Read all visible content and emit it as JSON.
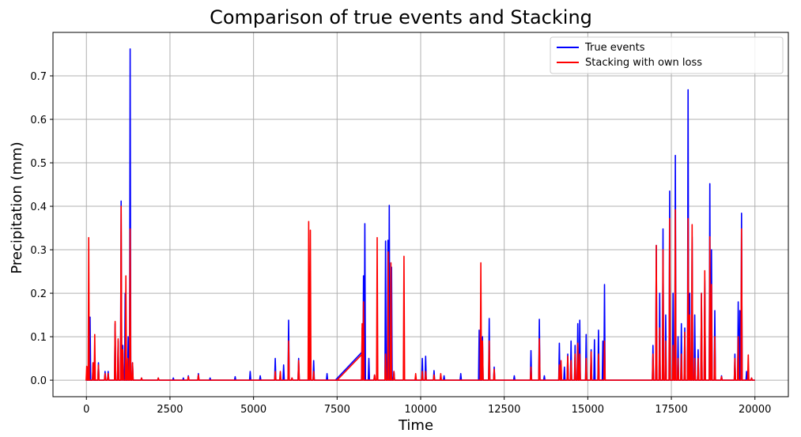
{
  "chart_data": {
    "type": "line",
    "title": "Comparison of  true events and Stacking",
    "xlabel": "Time",
    "ylabel": "Precipitation (mm)",
    "xlim": [
      -1000,
      21000
    ],
    "ylim": [
      -0.038,
      0.8
    ],
    "xticks": [
      0,
      2500,
      5000,
      7500,
      10000,
      12500,
      15000,
      17500,
      20000
    ],
    "yticks": [
      0.0,
      0.1,
      0.2,
      0.3,
      0.4,
      0.5,
      0.6,
      0.7
    ],
    "grid": true,
    "legend_position": "top-right",
    "series": [
      {
        "name": "True events",
        "color": "#0000ff",
        "spikes": [
          [
            50,
            0.03
          ],
          [
            110,
            0.145
          ],
          [
            200,
            0.04
          ],
          [
            360,
            0.04
          ],
          [
            560,
            0.02
          ],
          [
            650,
            0.02
          ],
          [
            860,
            0.13
          ],
          [
            950,
            0.09
          ],
          [
            1040,
            0.412
          ],
          [
            1090,
            0.08
          ],
          [
            1160,
            0.2
          ],
          [
            1250,
            0.1
          ],
          [
            1310,
            0.762
          ],
          [
            1380,
            0.04
          ],
          [
            1650,
            0.005
          ],
          [
            2150,
            0.005
          ],
          [
            2600,
            0.005
          ],
          [
            2900,
            0.005
          ],
          [
            3050,
            0.01
          ],
          [
            3350,
            0.015
          ],
          [
            3700,
            0.005
          ],
          [
            4450,
            0.008
          ],
          [
            4900,
            0.02
          ],
          [
            5200,
            0.01
          ],
          [
            5650,
            0.05
          ],
          [
            5900,
            0.035
          ],
          [
            6050,
            0.138
          ],
          [
            6150,
            0.005
          ],
          [
            6350,
            0.05
          ],
          [
            6700,
            0.065
          ],
          [
            6800,
            0.045
          ],
          [
            7200,
            0.015
          ],
          [
            8250,
            0.12
          ],
          [
            8290,
            0.24
          ],
          [
            8330,
            0.36
          ],
          [
            8450,
            0.05
          ],
          [
            8620,
            0.012
          ],
          [
            8700,
            0.015
          ],
          [
            8950,
            0.32
          ],
          [
            9020,
            0.322
          ],
          [
            9060,
            0.402
          ],
          [
            9130,
            0.26
          ],
          [
            9200,
            0.02
          ],
          [
            9500,
            0.01
          ],
          [
            10050,
            0.05
          ],
          [
            10150,
            0.055
          ],
          [
            10400,
            0.022
          ],
          [
            10700,
            0.01
          ],
          [
            11200,
            0.015
          ],
          [
            11750,
            0.115
          ],
          [
            11850,
            0.1
          ],
          [
            12050,
            0.142
          ],
          [
            12200,
            0.03
          ],
          [
            12800,
            0.01
          ],
          [
            13300,
            0.068
          ],
          [
            13550,
            0.14
          ],
          [
            13700,
            0.01
          ],
          [
            14150,
            0.085
          ],
          [
            14300,
            0.03
          ],
          [
            14400,
            0.06
          ],
          [
            14500,
            0.09
          ],
          [
            14620,
            0.08
          ],
          [
            14700,
            0.13
          ],
          [
            14760,
            0.138
          ],
          [
            14950,
            0.105
          ],
          [
            15100,
            0.07
          ],
          [
            15200,
            0.093
          ],
          [
            15320,
            0.115
          ],
          [
            15450,
            0.09
          ],
          [
            15500,
            0.22
          ],
          [
            16950,
            0.08
          ],
          [
            17050,
            0.31
          ],
          [
            17150,
            0.2
          ],
          [
            17250,
            0.348
          ],
          [
            17330,
            0.15
          ],
          [
            17450,
            0.435
          ],
          [
            17550,
            0.2
          ],
          [
            17620,
            0.517
          ],
          [
            17700,
            0.1
          ],
          [
            17800,
            0.13
          ],
          [
            17900,
            0.12
          ],
          [
            18000,
            0.668
          ],
          [
            18050,
            0.2
          ],
          [
            18120,
            0.33
          ],
          [
            18200,
            0.15
          ],
          [
            18300,
            0.07
          ],
          [
            18400,
            0.2
          ],
          [
            18500,
            0.23
          ],
          [
            18650,
            0.452
          ],
          [
            18700,
            0.3
          ],
          [
            18800,
            0.16
          ],
          [
            19000,
            0.01
          ],
          [
            19400,
            0.06
          ],
          [
            19500,
            0.18
          ],
          [
            19550,
            0.16
          ],
          [
            19600,
            0.384
          ],
          [
            19750,
            0.02
          ],
          [
            19900,
            0.005
          ]
        ],
        "ramps": [
          [
            7450,
            0.0
          ],
          [
            8250,
            0.065
          ]
        ]
      },
      {
        "name": "Stacking with own loss",
        "color": "#ff0000",
        "spikes": [
          [
            10,
            0.032
          ],
          [
            70,
            0.328
          ],
          [
            200,
            0.04
          ],
          [
            250,
            0.105
          ],
          [
            360,
            0.035
          ],
          [
            560,
            0.015
          ],
          [
            650,
            0.015
          ],
          [
            860,
            0.135
          ],
          [
            950,
            0.095
          ],
          [
            1040,
            0.4
          ],
          [
            1090,
            0.07
          ],
          [
            1180,
            0.24
          ],
          [
            1240,
            0.05
          ],
          [
            1310,
            0.348
          ],
          [
            1380,
            0.04
          ],
          [
            1650,
            0.005
          ],
          [
            2150,
            0.005
          ],
          [
            3050,
            0.008
          ],
          [
            3350,
            0.012
          ],
          [
            5650,
            0.02
          ],
          [
            5800,
            0.02
          ],
          [
            6050,
            0.09
          ],
          [
            6150,
            0.005
          ],
          [
            6350,
            0.045
          ],
          [
            6650,
            0.365
          ],
          [
            6700,
            0.345
          ],
          [
            6800,
            0.02
          ],
          [
            8250,
            0.13
          ],
          [
            8290,
            0.18
          ],
          [
            8620,
            0.012
          ],
          [
            8700,
            0.328
          ],
          [
            8950,
            0.06
          ],
          [
            9030,
            0.295
          ],
          [
            9110,
            0.27
          ],
          [
            9200,
            0.02
          ],
          [
            9500,
            0.285
          ],
          [
            9850,
            0.015
          ],
          [
            10050,
            0.02
          ],
          [
            10150,
            0.02
          ],
          [
            10400,
            0.012
          ],
          [
            10600,
            0.015
          ],
          [
            11800,
            0.27
          ],
          [
            11850,
            0.09
          ],
          [
            12050,
            0.09
          ],
          [
            12200,
            0.025
          ],
          [
            13300,
            0.03
          ],
          [
            13550,
            0.095
          ],
          [
            14150,
            0.035
          ],
          [
            14200,
            0.045
          ],
          [
            14400,
            0.055
          ],
          [
            14500,
            0.045
          ],
          [
            14620,
            0.06
          ],
          [
            14700,
            0.085
          ],
          [
            14760,
            0.06
          ],
          [
            14950,
            0.05
          ],
          [
            15100,
            0.065
          ],
          [
            15320,
            0.06
          ],
          [
            15500,
            0.09
          ],
          [
            16950,
            0.06
          ],
          [
            17050,
            0.31
          ],
          [
            17150,
            0.12
          ],
          [
            17250,
            0.3
          ],
          [
            17330,
            0.09
          ],
          [
            17450,
            0.372
          ],
          [
            17550,
            0.08
          ],
          [
            17620,
            0.392
          ],
          [
            17700,
            0.05
          ],
          [
            17800,
            0.06
          ],
          [
            17900,
            0.11
          ],
          [
            18000,
            0.372
          ],
          [
            18050,
            0.15
          ],
          [
            18120,
            0.358
          ],
          [
            18200,
            0.05
          ],
          [
            18300,
            0.05
          ],
          [
            18400,
            0.2
          ],
          [
            18500,
            0.252
          ],
          [
            18650,
            0.33
          ],
          [
            18700,
            0.22
          ],
          [
            18800,
            0.1
          ],
          [
            19000,
            0.008
          ],
          [
            19400,
            0.05
          ],
          [
            19500,
            0.1
          ],
          [
            19600,
            0.348
          ],
          [
            19800,
            0.058
          ],
          [
            19900,
            0.005
          ]
        ],
        "ramps": [
          [
            7500,
            0.0
          ],
          [
            8250,
            0.06
          ]
        ]
      }
    ]
  }
}
